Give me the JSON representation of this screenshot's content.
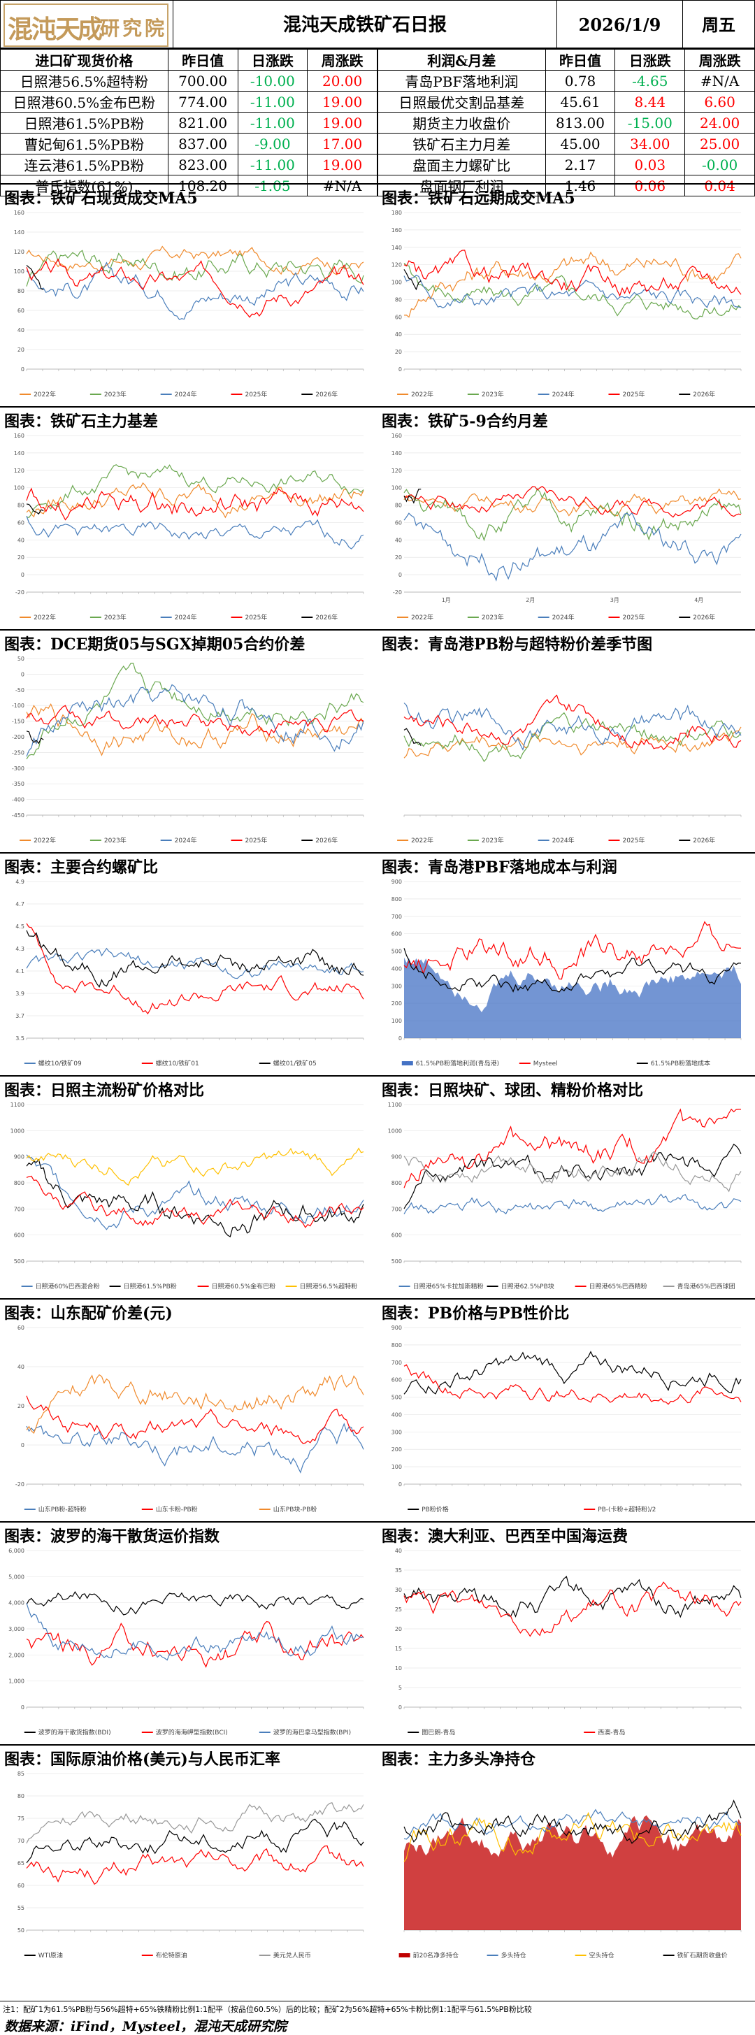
{
  "header": {
    "logo": [
      "混",
      "沌",
      "天",
      "成",
      "研",
      "究",
      "院"
    ],
    "title": "混沌天成铁矿石日报",
    "date": "2026/1/9",
    "weekday": "周五"
  },
  "left_table": {
    "headers": [
      "进口矿现货价格",
      "昨日值",
      "日涨跌",
      "周涨跌"
    ],
    "rows": [
      {
        "name": "日照港56.5%超特粉",
        "val": "700.00",
        "d": "-10.00",
        "dc": "g",
        "w": "20.00",
        "wc": "r"
      },
      {
        "name": "日照港60.5%金布巴粉",
        "val": "774.00",
        "d": "-11.00",
        "dc": "g",
        "w": "19.00",
        "wc": "r"
      },
      {
        "name": "日照港61.5%PB粉",
        "val": "821.00",
        "d": "-11.00",
        "dc": "g",
        "w": "19.00",
        "wc": "r"
      },
      {
        "name": "曹妃甸61.5%PB粉",
        "val": "837.00",
        "d": "-9.00",
        "dc": "g",
        "w": "17.00",
        "wc": "r"
      },
      {
        "name": "连云港61.5%PB粉",
        "val": "823.00",
        "d": "-11.00",
        "dc": "g",
        "w": "19.00",
        "wc": "r"
      },
      {
        "name": "普氏指数(61%)",
        "val": "108.20",
        "d": "-1.05",
        "dc": "g",
        "w": "#N/A",
        "wc": ""
      }
    ]
  },
  "right_table": {
    "headers": [
      "利润&月差",
      "昨日值",
      "日涨跌",
      "周涨跌"
    ],
    "rows": [
      {
        "name": "青岛PBF落地利润",
        "val": "0.78",
        "d": "-4.65",
        "dc": "g",
        "w": "#N/A",
        "wc": ""
      },
      {
        "name": "日照最优交割品基差",
        "val": "45.61",
        "d": "8.44",
        "dc": "r",
        "w": "6.60",
        "wc": "r"
      },
      {
        "name": "期货主力收盘价",
        "val": "813.00",
        "d": "-15.00",
        "dc": "g",
        "w": "24.00",
        "wc": "r"
      },
      {
        "name": "铁矿石主力月差",
        "val": "45.00",
        "d": "34.00",
        "dc": "r",
        "w": "25.00",
        "wc": "r"
      },
      {
        "name": "盘面主力螺矿比",
        "val": "2.17",
        "d": "0.03",
        "dc": "r",
        "w": "-0.00",
        "wc": "g"
      },
      {
        "name": "盘面钢厂利润",
        "val": "1.46",
        "d": "0.06",
        "dc": "r",
        "w": "0.04",
        "wc": "r"
      }
    ]
  },
  "panels": [
    {
      "id": "p1",
      "title": "图表：铁矿石现货成交MA5"
    },
    {
      "id": "p2",
      "title": "图表：铁矿石远期成交MA5"
    },
    {
      "id": "p3",
      "title": "图表：铁矿石主力基差"
    },
    {
      "id": "p4",
      "title": "图表：铁矿5-9合约月差"
    },
    {
      "id": "p5",
      "title": "图表：DCE期货05与SGX掉期05合约价差"
    },
    {
      "id": "p6",
      "title": "图表：青岛港PB粉与超特粉价差季节图"
    },
    {
      "id": "p7",
      "title": "图表：主要合约螺矿比"
    },
    {
      "id": "p8",
      "title": "图表：青岛港PBF落地成本与利润"
    },
    {
      "id": "p9",
      "title": "图表：日照主流粉矿价格对比"
    },
    {
      "id": "p10",
      "title": "图表：日照块矿、球团、精粉价格对比"
    },
    {
      "id": "p11",
      "title": "图表：山东配矿价差(元)"
    },
    {
      "id": "p12",
      "title": "图表：PB价格与PB性价比"
    },
    {
      "id": "p13",
      "title": "图表：波罗的海干散货运价指数"
    },
    {
      "id": "p14",
      "title": "图表：澳大利亚、巴西至中国海运费"
    },
    {
      "id": "p15",
      "title": "图表：国际原油价格(美元)与人民币汇率"
    },
    {
      "id": "p16",
      "title": "图表：主力多头净持仓"
    }
  ],
  "chart_data": [
    {
      "id": "p1",
      "type": "line",
      "yticks": [
        "0",
        "20",
        "40",
        "60",
        "80",
        "100",
        "120",
        "140",
        "160"
      ],
      "ylim": [
        0,
        160
      ],
      "series": [
        {
          "name": "2022年",
          "color": "#f08a2c"
        },
        {
          "name": "2023年",
          "color": "#6aa84f"
        },
        {
          "name": "2024年",
          "color": "#4a7ebb"
        },
        {
          "name": "2025年",
          "color": "#ff0000"
        },
        {
          "name": "2026年",
          "color": "#000000"
        }
      ]
    },
    {
      "id": "p2",
      "type": "line",
      "yticks": [
        "0",
        "20",
        "40",
        "60",
        "80",
        "100",
        "120",
        "140",
        "160",
        "180"
      ],
      "ylim": [
        0,
        180
      ],
      "series": [
        {
          "name": "2022年",
          "color": "#f08a2c"
        },
        {
          "name": "2023年",
          "color": "#6aa84f"
        },
        {
          "name": "2024年",
          "color": "#4a7ebb"
        },
        {
          "name": "2025年",
          "color": "#ff0000"
        },
        {
          "name": "2026年",
          "color": "#000000"
        }
      ]
    },
    {
      "id": "p3",
      "type": "line",
      "yticks": [
        "-20",
        "0",
        "20",
        "40",
        "60",
        "80",
        "100",
        "120",
        "140",
        "160"
      ],
      "ylim": [
        -20,
        160
      ],
      "series": [
        {
          "name": "2022年",
          "color": "#f08a2c"
        },
        {
          "name": "2023年",
          "color": "#6aa84f"
        },
        {
          "name": "2024年",
          "color": "#4a7ebb"
        },
        {
          "name": "2025年",
          "color": "#ff0000"
        },
        {
          "name": "2026年",
          "color": "#000000"
        }
      ]
    },
    {
      "id": "p4",
      "type": "line",
      "yticks": [
        "-20",
        "0",
        "20",
        "40",
        "60",
        "80",
        "100",
        "120",
        "140",
        "160"
      ],
      "ylim": [
        -20,
        160
      ],
      "xticks": [
        "1月",
        "2月",
        "3月",
        "4月"
      ],
      "series": [
        {
          "name": "2022年",
          "color": "#f08a2c"
        },
        {
          "name": "2023年",
          "color": "#6aa84f"
        },
        {
          "name": "2024年",
          "color": "#4a7ebb"
        },
        {
          "name": "2025年",
          "color": "#ff0000"
        },
        {
          "name": "2026年",
          "color": "#000000"
        }
      ]
    },
    {
      "id": "p5",
      "type": "line",
      "yticks": [
        "-450",
        "-400",
        "-350",
        "-300",
        "-250",
        "-200",
        "-150",
        "-100",
        "-50",
        "0",
        "50"
      ],
      "ylim": [
        -450,
        50
      ],
      "series": [
        {
          "name": "2022年",
          "color": "#f08a2c"
        },
        {
          "name": "2023年",
          "color": "#6aa84f"
        },
        {
          "name": "2024年",
          "color": "#4a7ebb"
        },
        {
          "name": "2025年",
          "color": "#ff0000"
        },
        {
          "name": "2026年",
          "color": "#000000"
        }
      ]
    },
    {
      "id": "p6",
      "type": "line",
      "yticks": [],
      "ylim": [
        0,
        400
      ],
      "series": [
        {
          "name": "2022年",
          "color": "#f08a2c"
        },
        {
          "name": "2023年",
          "color": "#6aa84f"
        },
        {
          "name": "2024年",
          "color": "#4a7ebb"
        },
        {
          "name": "2025年",
          "color": "#ff0000"
        },
        {
          "name": "2026年",
          "color": "#000000"
        }
      ]
    },
    {
      "id": "p7",
      "type": "line",
      "yticks": [
        "3.5",
        "3.7",
        "3.9",
        "4.1",
        "4.3",
        "4.5",
        "4.7",
        "4.9"
      ],
      "ylim": [
        3.5,
        4.9
      ],
      "series": [
        {
          "name": "螺纹10/铁矿09",
          "color": "#4a7ebb"
        },
        {
          "name": "螺纹10/铁矿01",
          "color": "#ff0000"
        },
        {
          "name": "螺纹01/铁矿05",
          "color": "#000000"
        }
      ]
    },
    {
      "id": "p8",
      "type": "area",
      "yticks": [
        "0",
        "100",
        "200",
        "300",
        "400",
        "500",
        "600",
        "700",
        "800",
        "900"
      ],
      "ylim": [
        0,
        900
      ],
      "series": [
        {
          "name": "61.5%PB粉落地利润(青岛港)",
          "color": "#4472c4"
        },
        {
          "name": "Mysteel",
          "color": "#ff0000"
        },
        {
          "name": "61.5%PB粉落地成本",
          "color": "#000000"
        }
      ]
    },
    {
      "id": "p9",
      "type": "line",
      "yticks": [
        "500",
        "600",
        "700",
        "800",
        "900",
        "1000",
        "1100"
      ],
      "ylim": [
        500,
        1100
      ],
      "series": [
        {
          "name": "日照港60%巴西混合粉",
          "color": "#4a7ebb"
        },
        {
          "name": "日照港61.5%PB粉",
          "color": "#000000"
        },
        {
          "name": "日照港60.5%金布巴粉",
          "color": "#ff0000"
        },
        {
          "name": "日照港56.5%超特粉",
          "color": "#ffc000"
        }
      ]
    },
    {
      "id": "p10",
      "type": "line",
      "yticks": [
        "500",
        "600",
        "700",
        "800",
        "900",
        "1000",
        "1100"
      ],
      "ylim": [
        500,
        1100
      ],
      "series": [
        {
          "name": "日照港65%卡拉加斯精粉",
          "color": "#4a7ebb"
        },
        {
          "name": "日照港62.5%PB块",
          "color": "#000000"
        },
        {
          "name": "日照港65%巴西精粉",
          "color": "#ff0000"
        },
        {
          "name": "青岛港65%巴西球团",
          "color": "#999999"
        }
      ]
    },
    {
      "id": "p11",
      "type": "line",
      "yticks": [
        "-20",
        "0",
        "20",
        "40",
        "60"
      ],
      "ylim": [
        -20,
        70
      ],
      "series": [
        {
          "name": "山东PB粉-超特粉",
          "color": "#4a7ebb"
        },
        {
          "name": "山东卡粉-PB粉",
          "color": "#ff0000"
        },
        {
          "name": "山东PB块-PB粉",
          "color": "#f08a2c"
        }
      ]
    },
    {
      "id": "p12",
      "type": "line",
      "yticks": [
        "0",
        "100",
        "200",
        "300",
        "400",
        "500",
        "600",
        "700",
        "800",
        "900"
      ],
      "ylim": [
        0,
        900
      ],
      "series": [
        {
          "name": "PB粉价格",
          "color": "#000000"
        },
        {
          "name": "PB-(卡粉+超特粉)/2",
          "color": "#ff0000"
        }
      ]
    },
    {
      "id": "p13",
      "type": "line",
      "yticks": [
        "0",
        "1,000",
        "2,000",
        "3,000",
        "4,000",
        "5,000",
        "6,000"
      ],
      "ylim": [
        0,
        6000
      ],
      "series": [
        {
          "name": "波罗的海干散货指数(BDI)",
          "color": "#000000"
        },
        {
          "name": "波罗的海海岬型指数(BCI)",
          "color": "#ff0000"
        },
        {
          "name": "波罗的海巴拿马型指数(BPI)",
          "color": "#4a7ebb"
        }
      ]
    },
    {
      "id": "p14",
      "type": "line",
      "yticks": [
        "0",
        "5",
        "10",
        "15",
        "20",
        "25",
        "30",
        "35",
        "40"
      ],
      "ylim": [
        0,
        40
      ],
      "series": [
        {
          "name": "图巴朗-青岛",
          "color": "#000000"
        },
        {
          "name": "西澳-青岛",
          "color": "#ff0000"
        }
      ]
    },
    {
      "id": "p15",
      "type": "line",
      "yticks": [
        "50",
        "55",
        "60",
        "65",
        "70",
        "75",
        "80",
        "85"
      ],
      "ylim": [
        50,
        85
      ],
      "series": [
        {
          "name": "WTI原油",
          "color": "#000000"
        },
        {
          "name": "布伦特原油",
          "color": "#ff0000"
        },
        {
          "name": "美元兑人民币",
          "color": "#999999"
        }
      ]
    },
    {
      "id": "p16",
      "type": "area",
      "yticks": [],
      "ylim": [
        0,
        1
      ],
      "series": [
        {
          "name": "前20名净多持仓",
          "color": "#c00000"
        },
        {
          "name": "多头持仓",
          "color": "#4a7ebb"
        },
        {
          "name": "空头持仓",
          "color": "#ffc000"
        },
        {
          "name": "铁矿石期货收盘价",
          "color": "#000000"
        }
      ]
    }
  ],
  "footer": {
    "note": "注1：配矿1为61.5%PB粉与56%超特+65%铁精粉比例1:1配平（按品位60.5%）后的比较；配矿2为56%超特+65%卡粉比例1:1配平与61.5%PB粉比较",
    "source": "数据来源：iFind，Mysteel，混沌天成研究院"
  }
}
